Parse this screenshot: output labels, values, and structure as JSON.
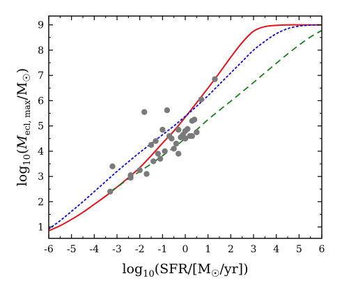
{
  "chart_data": {
    "type": "scatter",
    "xlabel": {
      "prefix": "log",
      "sub": "10",
      "body": "(SFR/[M",
      "sun": "☉",
      "suffix": "/yr])"
    },
    "ylabel": {
      "prefix": "log",
      "sub": "10",
      "open": "(",
      "M": "M",
      "msub": "ecl, max",
      "mid": "/M",
      "sun": "☉",
      "close": ")"
    },
    "xlim": [
      -6,
      6
    ],
    "ylim": [
      0.55,
      9.35
    ],
    "xticks": [
      -6,
      -5,
      -4,
      -3,
      -2,
      -1,
      0,
      1,
      2,
      3,
      4,
      5,
      6
    ],
    "yticks": [
      1,
      2,
      3,
      4,
      5,
      6,
      7,
      8,
      9
    ],
    "grid": false,
    "legend": "none",
    "curves": [
      {
        "style": "solid",
        "color": "#e8111b",
        "x": [
          -6,
          -5.5,
          -5,
          -4.5,
          -4,
          -3.5,
          -3,
          -2.5,
          -2,
          -1.5,
          -1,
          -0.5,
          0,
          0.5,
          1,
          1.5,
          2,
          2.5,
          3,
          3.5,
          4,
          4.5,
          5,
          5.5,
          6
        ],
        "y": [
          0.85,
          1.05,
          1.3,
          1.58,
          1.9,
          2.22,
          2.58,
          2.95,
          3.35,
          3.82,
          4.32,
          4.8,
          5.35,
          5.92,
          6.5,
          7.1,
          7.72,
          8.3,
          8.75,
          8.93,
          8.98,
          9.0,
          9.0,
          9.0,
          9.0
        ]
      },
      {
        "style": "dotted",
        "color": "#1a1ad6",
        "x": [
          -6,
          -5.5,
          -5,
          -4.5,
          -4,
          -3.5,
          -3,
          -2.5,
          -2,
          -1.5,
          -1,
          -0.5,
          0,
          0.5,
          1,
          1.5,
          2,
          2.5,
          3,
          3.5,
          4,
          4.5,
          5,
          5.5,
          6
        ],
        "y": [
          0.92,
          1.25,
          1.62,
          2.0,
          2.4,
          2.8,
          3.2,
          3.58,
          3.95,
          4.3,
          4.65,
          5.0,
          5.38,
          5.78,
          6.2,
          6.65,
          7.1,
          7.55,
          8.0,
          8.35,
          8.65,
          8.85,
          8.95,
          8.99,
          9.0
        ]
      },
      {
        "style": "dashed",
        "color": "#1e7d1e",
        "x": [
          -3.3,
          -3,
          -2.5,
          -2,
          -1.5,
          -1,
          -0.5,
          0,
          0.5,
          1,
          1.5,
          2,
          2.5,
          3,
          3.5,
          4,
          4.5,
          5,
          5.5,
          6
        ],
        "y": [
          2.4,
          2.58,
          2.9,
          3.2,
          3.5,
          3.82,
          4.15,
          4.5,
          4.85,
          5.25,
          5.62,
          5.98,
          6.35,
          6.72,
          7.1,
          7.48,
          7.85,
          8.2,
          8.52,
          8.78
        ]
      }
    ],
    "points": {
      "color": "#7a7a7a",
      "x": [
        -3.3,
        -3.2,
        -2.4,
        -2.4,
        -2.0,
        -1.8,
        -1.7,
        -1.5,
        -1.4,
        -1.3,
        -1.2,
        -1.1,
        -1.0,
        -0.9,
        -0.8,
        -0.7,
        -0.6,
        -0.5,
        -0.4,
        -0.3,
        -0.3,
        -0.2,
        -0.1,
        0.0,
        0.0,
        0.1,
        0.2,
        0.3,
        0.3,
        0.4,
        0.5,
        0.7,
        1.3
      ],
      "y": [
        2.4,
        3.4,
        2.95,
        3.05,
        3.25,
        5.55,
        3.1,
        4.25,
        3.6,
        4.4,
        3.9,
        3.7,
        4.85,
        4.0,
        5.62,
        4.6,
        4.5,
        4.1,
        4.3,
        4.85,
        3.9,
        4.55,
        4.65,
        4.8,
        4.5,
        4.88,
        4.6,
        5.2,
        4.6,
        5.25,
        4.75,
        6.05,
        6.85
      ]
    }
  }
}
